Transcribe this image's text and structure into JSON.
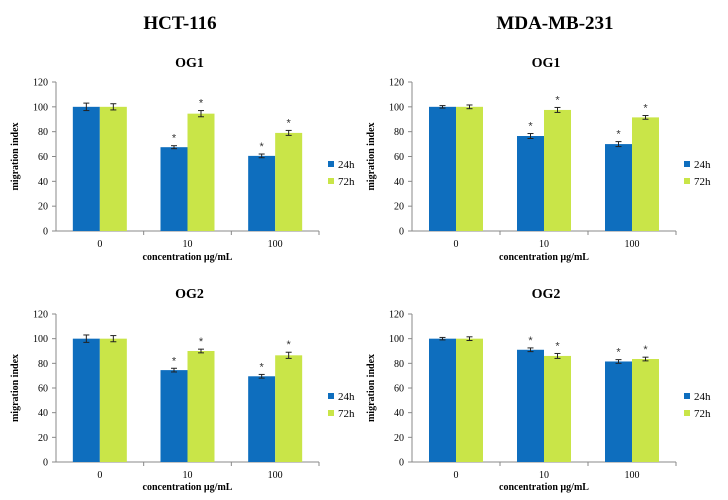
{
  "column_titles": [
    "HCT-116",
    "MDA-MB-231"
  ],
  "colors": {
    "24h": "#0E6EBE",
    "72h": "#C9E548",
    "axis": "#888888",
    "error": "#222222"
  },
  "chart_data": [
    {
      "type": "bar",
      "cell_line": "HCT-116",
      "title": "OG1",
      "xlabel": "concentration µg/mL",
      "ylabel": "migration index",
      "ylim": [
        0,
        120
      ],
      "yticks": [
        "0",
        "20",
        "40",
        "60",
        "80",
        "100",
        "120"
      ],
      "categories": [
        "0",
        "10",
        "100"
      ],
      "series": [
        {
          "name": "24h",
          "values": [
            100,
            67.5,
            60.5
          ],
          "errors": [
            3,
            1.2,
            1.5
          ],
          "significant": [
            false,
            true,
            true
          ]
        },
        {
          "name": "72h",
          "values": [
            100,
            94.5,
            79
          ],
          "errors": [
            2.5,
            2.5,
            2
          ],
          "significant": [
            false,
            true,
            true
          ]
        }
      ]
    },
    {
      "type": "bar",
      "cell_line": "MDA-MB-231",
      "title": "OG1",
      "xlabel": "concentration µg/mL",
      "ylabel": "migration index",
      "ylim": [
        0,
        120
      ],
      "yticks": [
        "0",
        "20",
        "40",
        "60",
        "80",
        "100",
        "120"
      ],
      "categories": [
        "0",
        "10",
        "100"
      ],
      "series": [
        {
          "name": "24h",
          "values": [
            100,
            76.5,
            70
          ],
          "errors": [
            1,
            2,
            2
          ],
          "significant": [
            false,
            true,
            true
          ]
        },
        {
          "name": "72h",
          "values": [
            100,
            97.5,
            91.5
          ],
          "errors": [
            1.5,
            2,
            1.5
          ],
          "significant": [
            false,
            true,
            true
          ]
        }
      ]
    },
    {
      "type": "bar",
      "cell_line": "HCT-116",
      "title": "OG2",
      "xlabel": "concentration µg/mL",
      "ylabel": "migration index",
      "ylim": [
        0,
        120
      ],
      "yticks": [
        "0",
        "20",
        "40",
        "60",
        "80",
        "100",
        "120"
      ],
      "categories": [
        "0",
        "10",
        "100"
      ],
      "series": [
        {
          "name": "24h",
          "values": [
            100,
            74.5,
            69.5
          ],
          "errors": [
            3,
            1.5,
            1.5
          ],
          "significant": [
            false,
            true,
            true
          ]
        },
        {
          "name": "72h",
          "values": [
            100,
            90,
            86.5
          ],
          "errors": [
            2.5,
            1.5,
            2.5
          ],
          "significant": [
            false,
            true,
            true
          ]
        }
      ]
    },
    {
      "type": "bar",
      "cell_line": "MDA-MB-231",
      "title": "OG2",
      "xlabel": "concentration µg/mL",
      "ylabel": "migration index",
      "ylim": [
        0,
        120
      ],
      "yticks": [
        "0",
        "20",
        "40",
        "60",
        "80",
        "100",
        "120"
      ],
      "categories": [
        "0",
        "10",
        "100"
      ],
      "series": [
        {
          "name": "24h",
          "values": [
            100,
            91,
            81.5
          ],
          "errors": [
            1,
            1.5,
            1.5
          ],
          "significant": [
            false,
            true,
            true
          ]
        },
        {
          "name": "72h",
          "values": [
            100,
            86,
            83.5
          ],
          "errors": [
            1.5,
            2,
            1.5
          ],
          "significant": [
            false,
            true,
            true
          ]
        }
      ]
    }
  ],
  "significance_marker": "*"
}
